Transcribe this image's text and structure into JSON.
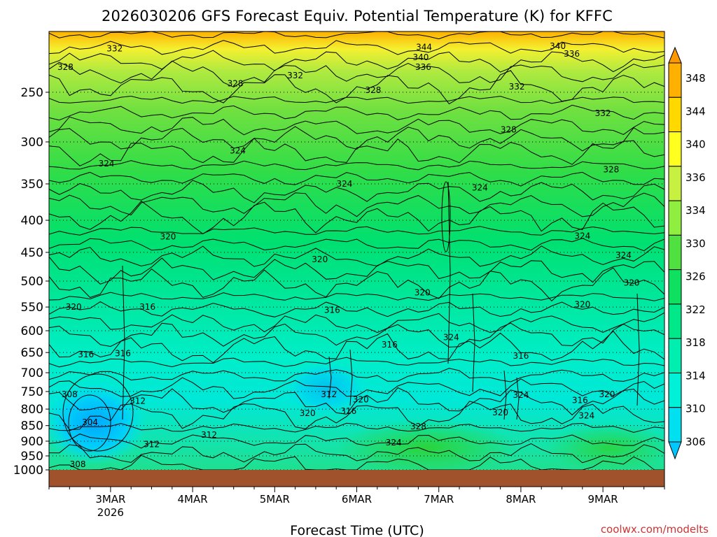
{
  "chart_data": {
    "type": "heatmap",
    "title": "2026030206 GFS Forecast Equiv. Potential Temperature (K) for KFFC",
    "xlabel": "Forecast Time (UTC)",
    "ylabel": "",
    "credit": "coolwx.com/modelts",
    "x_ticks": [
      {
        "label": "3MAR",
        "sub": "2026",
        "day": 1
      },
      {
        "label": "4MAR",
        "sub": "",
        "day": 2
      },
      {
        "label": "5MAR",
        "sub": "",
        "day": 3
      },
      {
        "label": "6MAR",
        "sub": "",
        "day": 4
      },
      {
        "label": "7MAR",
        "sub": "",
        "day": 5
      },
      {
        "label": "8MAR",
        "sub": "",
        "day": 6
      },
      {
        "label": "9MAR",
        "sub": "",
        "day": 7
      }
    ],
    "x_range_days": [
      0.25,
      7.75
    ],
    "y_ticks": [
      250,
      300,
      350,
      400,
      450,
      500,
      550,
      600,
      650,
      700,
      750,
      800,
      850,
      900,
      950,
      1000
    ],
    "y_range_hpa": [
      200,
      1000
    ],
    "y_scale": "log-pressure",
    "grid": "dotted at pressure levels",
    "colorbar": {
      "levels": [
        306,
        310,
        314,
        318,
        322,
        326,
        330,
        334,
        336,
        340,
        344,
        348
      ],
      "colors": [
        "#00c8ff",
        "#00e0f0",
        "#00f0d8",
        "#00eeb0",
        "#00e888",
        "#10e060",
        "#50e040",
        "#90ee40",
        "#c8f040",
        "#ffff20",
        "#ffd800",
        "#ffb000",
        "#ff9800"
      ]
    },
    "contour_labels": [
      {
        "text": "332",
        "day": 1.05,
        "p": 213
      },
      {
        "text": "328",
        "day": 0.45,
        "p": 228
      },
      {
        "text": "344",
        "day": 4.82,
        "p": 212
      },
      {
        "text": "340",
        "day": 4.78,
        "p": 220
      },
      {
        "text": "336",
        "day": 4.81,
        "p": 228
      },
      {
        "text": "340",
        "day": 6.45,
        "p": 211
      },
      {
        "text": "336",
        "day": 6.62,
        "p": 217
      },
      {
        "text": "332",
        "day": 3.25,
        "p": 235
      },
      {
        "text": "328",
        "day": 2.52,
        "p": 242
      },
      {
        "text": "328",
        "day": 4.2,
        "p": 248
      },
      {
        "text": "332",
        "day": 5.95,
        "p": 245
      },
      {
        "text": "332",
        "day": 7.0,
        "p": 270
      },
      {
        "text": "328",
        "day": 5.85,
        "p": 287
      },
      {
        "text": "324",
        "day": 2.55,
        "p": 310
      },
      {
        "text": "324",
        "day": 0.95,
        "p": 325
      },
      {
        "text": "328",
        "day": 7.1,
        "p": 332
      },
      {
        "text": "324",
        "day": 3.85,
        "p": 350
      },
      {
        "text": "324",
        "day": 5.5,
        "p": 355
      },
      {
        "text": "324",
        "day": 6.75,
        "p": 424
      },
      {
        "text": "320",
        "day": 1.7,
        "p": 425
      },
      {
        "text": "324",
        "day": 7.25,
        "p": 455
      },
      {
        "text": "320",
        "day": 3.55,
        "p": 462
      },
      {
        "text": "320",
        "day": 7.35,
        "p": 503
      },
      {
        "text": "320",
        "day": 4.8,
        "p": 522
      },
      {
        "text": "320",
        "day": 6.75,
        "p": 545
      },
      {
        "text": "320",
        "day": 0.55,
        "p": 550
      },
      {
        "text": "316",
        "day": 1.45,
        "p": 550
      },
      {
        "text": "316",
        "day": 3.7,
        "p": 556
      },
      {
        "text": "324",
        "day": 5.15,
        "p": 615
      },
      {
        "text": "316",
        "day": 4.4,
        "p": 632
      },
      {
        "text": "316",
        "day": 0.7,
        "p": 655
      },
      {
        "text": "316",
        "day": 1.15,
        "p": 652
      },
      {
        "text": "316",
        "day": 6.0,
        "p": 658
      },
      {
        "text": "308",
        "day": 0.5,
        "p": 758
      },
      {
        "text": "312",
        "day": 3.66,
        "p": 758
      },
      {
        "text": "324",
        "day": 6.0,
        "p": 760
      },
      {
        "text": "312",
        "day": 1.33,
        "p": 777
      },
      {
        "text": "320",
        "day": 4.05,
        "p": 773
      },
      {
        "text": "316",
        "day": 6.72,
        "p": 775
      },
      {
        "text": "320",
        "day": 7.05,
        "p": 758
      },
      {
        "text": "316",
        "day": 3.9,
        "p": 806
      },
      {
        "text": "320",
        "day": 3.4,
        "p": 812
      },
      {
        "text": "320",
        "day": 5.75,
        "p": 810
      },
      {
        "text": "324",
        "day": 6.8,
        "p": 820
      },
      {
        "text": "304",
        "day": 0.75,
        "p": 840
      },
      {
        "text": "328",
        "day": 4.75,
        "p": 853
      },
      {
        "text": "312",
        "day": 2.2,
        "p": 880
      },
      {
        "text": "324",
        "day": 4.45,
        "p": 905
      },
      {
        "text": "312",
        "day": 1.5,
        "p": 910
      },
      {
        "text": "308",
        "day": 0.6,
        "p": 980
      }
    ]
  }
}
